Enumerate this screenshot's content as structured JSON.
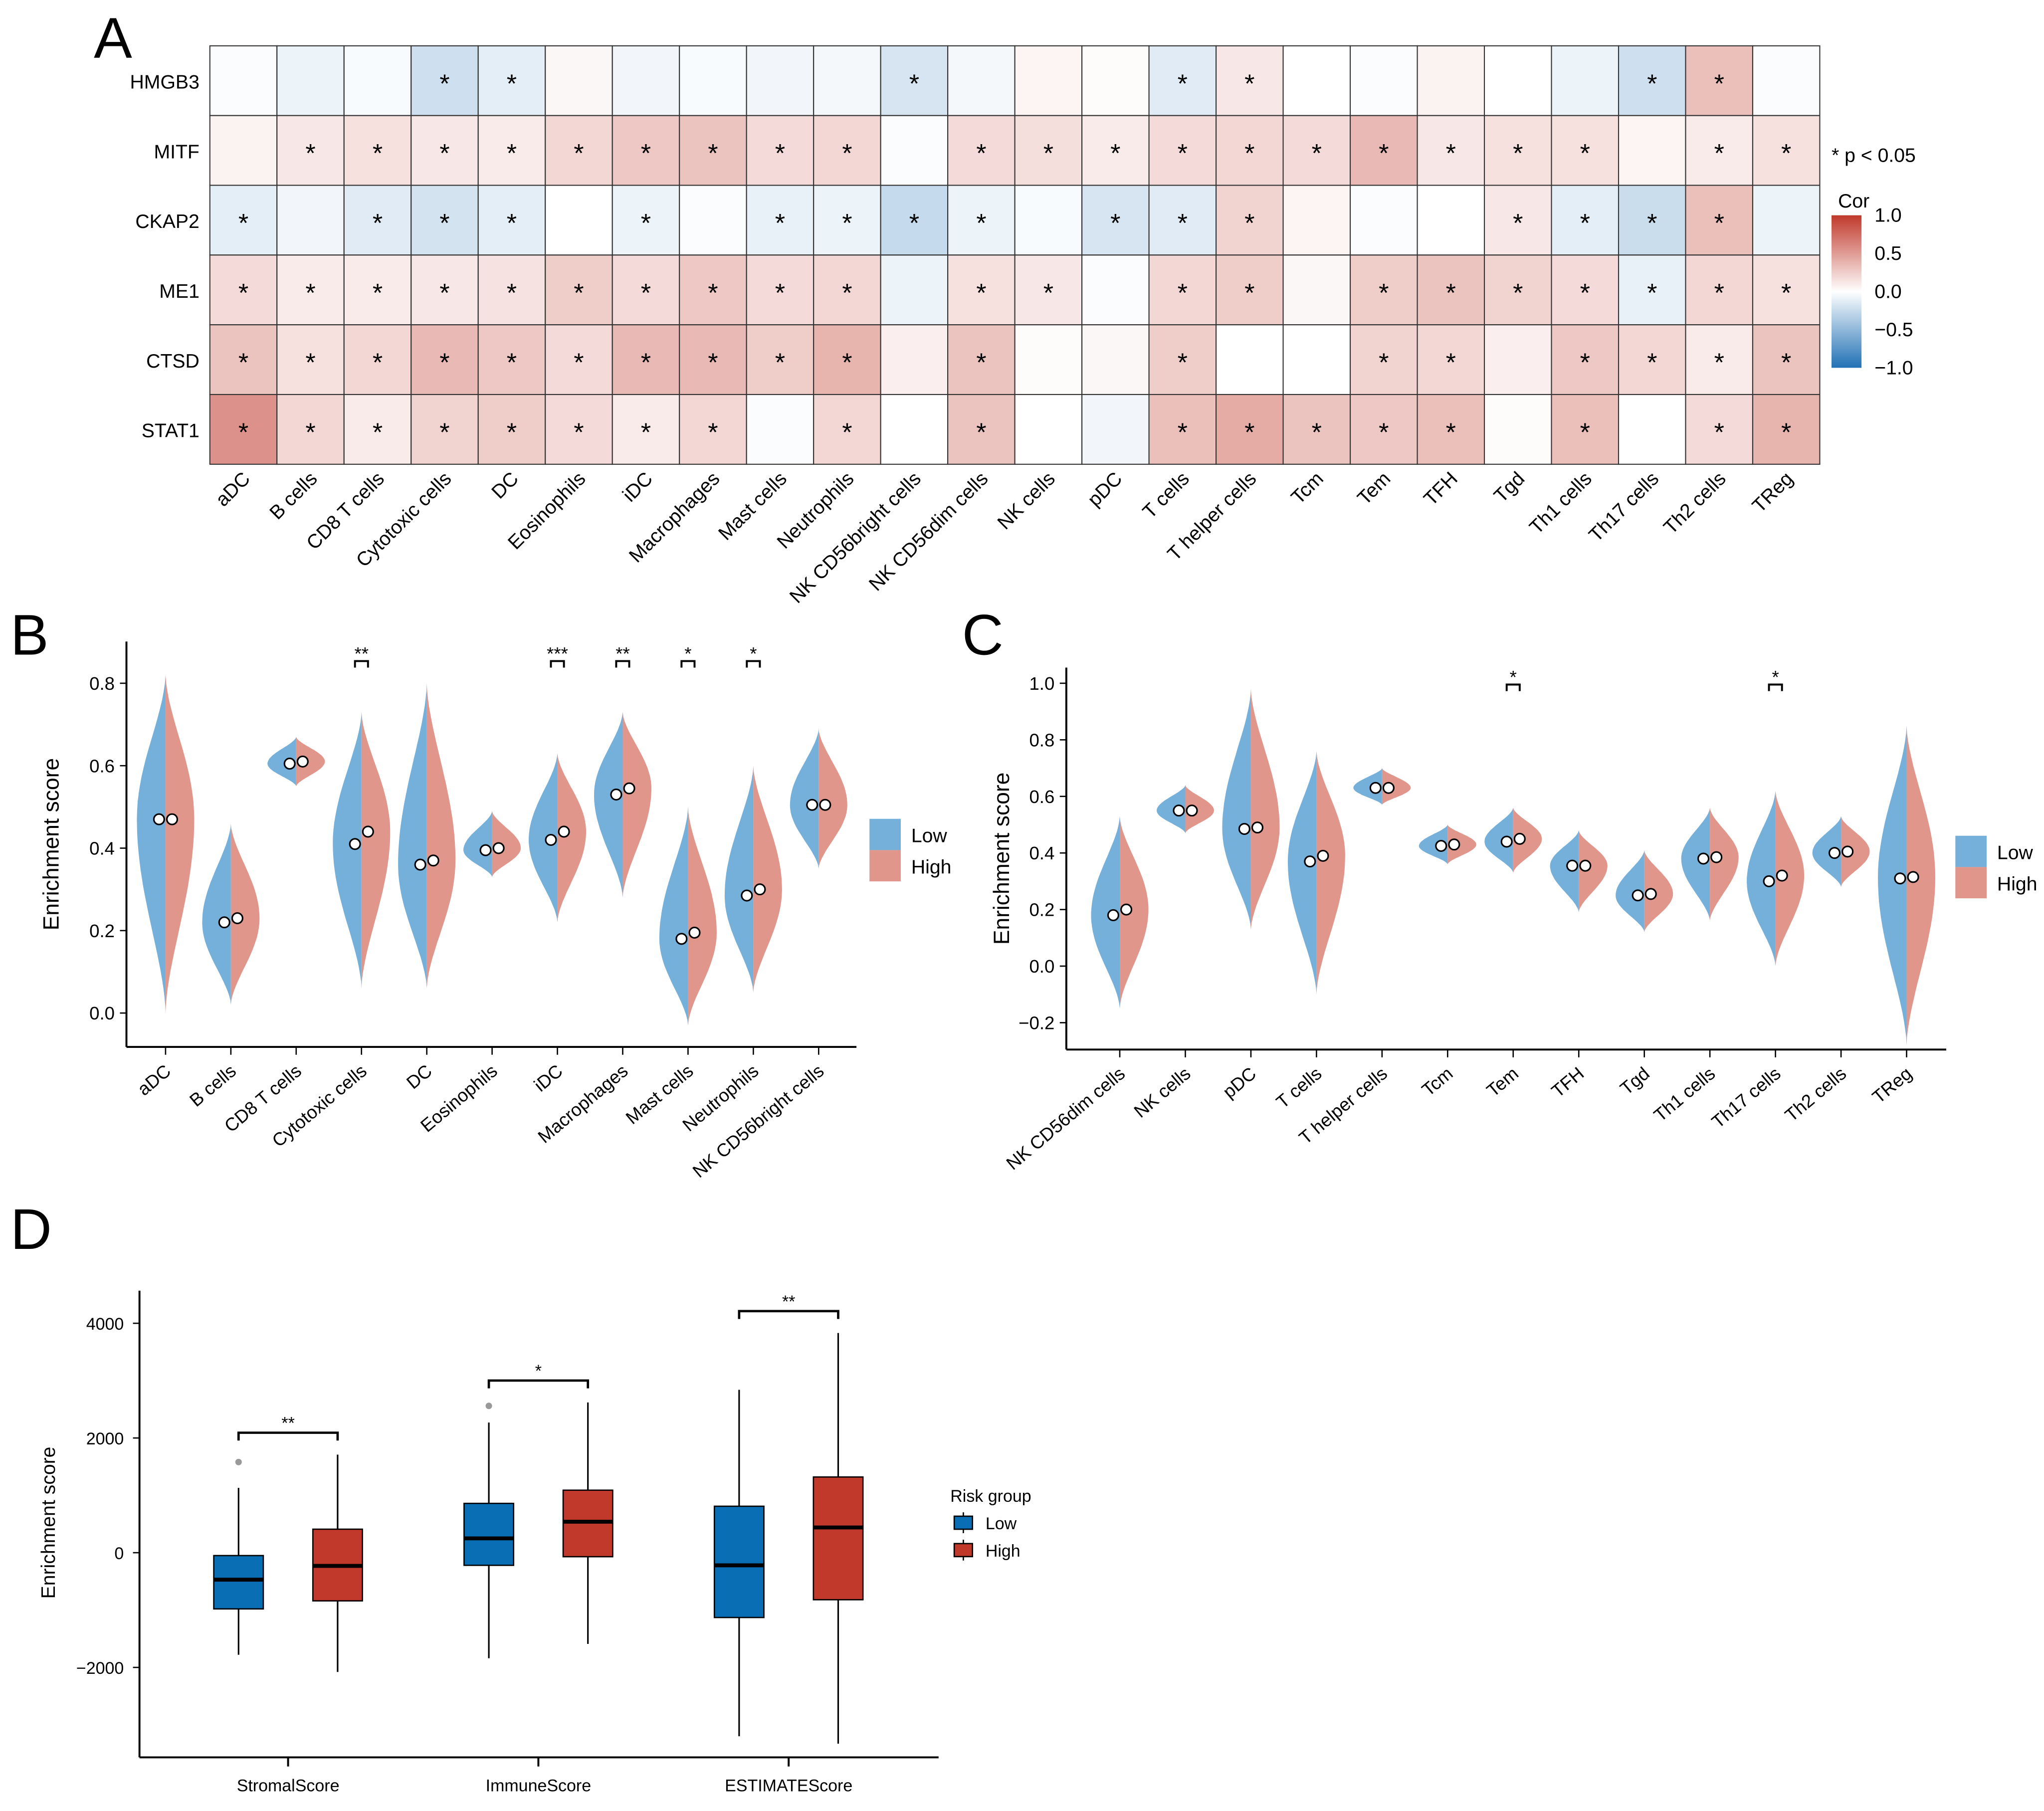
{
  "panels": {
    "a": "A",
    "b": "B",
    "c": "C",
    "d": "D"
  },
  "chart_data": [
    {
      "type": "heatmap",
      "panel": "A",
      "rows": [
        "HMGB3",
        "MITF",
        "CKAP2",
        "ME1",
        "CTSD",
        "STAT1"
      ],
      "columns": [
        "aDC",
        "B cells",
        "CD8 T cells",
        "Cytotoxic cells",
        "DC",
        "Eosinophils",
        "iDC",
        "Macrophages",
        "Mast cells",
        "Neutrophils",
        "NK CD56bright cells",
        "NK CD56dim cells",
        "NK cells",
        "pDC",
        "T cells",
        "T helper cells",
        "Tcm",
        "Tem",
        "TFH",
        "Tgd",
        "Th1 cells",
        "Th17 cells",
        "Th2 cells",
        "TReg"
      ],
      "values": [
        [
          -0.02,
          -0.08,
          -0.03,
          -0.22,
          -0.12,
          0.04,
          -0.06,
          -0.03,
          -0.06,
          -0.05,
          -0.18,
          -0.05,
          0.05,
          0.02,
          -0.14,
          0.12,
          0.0,
          -0.02,
          0.06,
          0.0,
          -0.08,
          -0.22,
          0.32,
          -0.02
        ],
        [
          0.06,
          0.12,
          0.15,
          0.12,
          0.1,
          0.2,
          0.28,
          0.3,
          0.18,
          0.2,
          -0.02,
          0.18,
          0.16,
          0.1,
          0.18,
          0.2,
          0.18,
          0.35,
          0.12,
          0.15,
          0.15,
          0.05,
          0.1,
          0.15
        ],
        [
          -0.12,
          -0.06,
          -0.14,
          -0.2,
          -0.12,
          0.0,
          -0.08,
          -0.02,
          -0.1,
          -0.08,
          -0.26,
          -0.08,
          -0.03,
          -0.18,
          -0.14,
          0.22,
          0.05,
          -0.02,
          0.0,
          0.12,
          -0.12,
          -0.24,
          0.32,
          -0.08
        ],
        [
          0.18,
          0.1,
          0.1,
          0.12,
          0.14,
          0.25,
          0.18,
          0.28,
          0.18,
          0.2,
          -0.08,
          0.15,
          0.12,
          -0.02,
          0.2,
          0.25,
          0.04,
          0.25,
          0.3,
          0.22,
          0.18,
          -0.1,
          0.2,
          0.15
        ],
        [
          0.3,
          0.15,
          0.2,
          0.35,
          0.28,
          0.18,
          0.35,
          0.35,
          0.25,
          0.38,
          0.08,
          0.3,
          0.02,
          0.04,
          0.25,
          0.0,
          0.0,
          0.22,
          0.2,
          0.08,
          0.28,
          0.2,
          0.1,
          0.3
        ],
        [
          0.55,
          0.2,
          0.1,
          0.22,
          0.25,
          0.18,
          0.1,
          0.2,
          -0.02,
          0.2,
          0.0,
          0.3,
          0.0,
          -0.06,
          0.32,
          0.42,
          0.3,
          0.28,
          0.32,
          0.02,
          0.32,
          0.0,
          0.18,
          0.38
        ]
      ],
      "significant": [
        [
          0,
          0,
          0,
          1,
          1,
          0,
          0,
          0,
          0,
          0,
          1,
          0,
          0,
          0,
          1,
          1,
          0,
          0,
          0,
          0,
          0,
          1,
          1,
          0
        ],
        [
          0,
          1,
          1,
          1,
          1,
          1,
          1,
          1,
          1,
          1,
          0,
          1,
          1,
          1,
          1,
          1,
          1,
          1,
          1,
          1,
          1,
          0,
          1,
          1
        ],
        [
          1,
          0,
          1,
          1,
          1,
          0,
          1,
          0,
          1,
          1,
          1,
          1,
          0,
          1,
          1,
          1,
          0,
          0,
          0,
          1,
          1,
          1,
          1,
          0
        ],
        [
          1,
          1,
          1,
          1,
          1,
          1,
          1,
          1,
          1,
          1,
          0,
          1,
          1,
          0,
          1,
          1,
          0,
          1,
          1,
          1,
          1,
          1,
          1,
          1
        ],
        [
          1,
          1,
          1,
          1,
          1,
          1,
          1,
          1,
          1,
          1,
          0,
          1,
          0,
          0,
          1,
          0,
          0,
          1,
          1,
          0,
          1,
          1,
          1,
          1
        ],
        [
          1,
          1,
          1,
          1,
          1,
          1,
          1,
          1,
          0,
          1,
          0,
          1,
          0,
          0,
          1,
          1,
          1,
          1,
          1,
          0,
          1,
          0,
          1,
          1
        ]
      ],
      "star": "*",
      "sig_note": "* p < 0.05",
      "legend_title": "Cor",
      "legend_ticks": [
        "1.0",
        "0.5",
        "0.0",
        "−0.5",
        "−1.0"
      ],
      "range": [
        -1,
        1
      ],
      "colors": {
        "neg": "#2171b5",
        "mid": "#ffffff",
        "pos": "#c0392b"
      }
    },
    {
      "type": "violin",
      "panel": "B",
      "ylabel": "Enrichment score",
      "yticks": [
        "0.0",
        "0.2",
        "0.4",
        "0.6",
        "0.8"
      ],
      "categories": [
        "aDC",
        "B cells",
        "CD8 T cells",
        "Cytotoxic cells",
        "DC",
        "Eosinophils",
        "iDC",
        "Macrophages",
        "Mast cells",
        "Neutrophils",
        "NK CD56bright cells"
      ],
      "low_median": [
        0.47,
        0.22,
        0.605,
        0.41,
        0.36,
        0.395,
        0.42,
        0.53,
        0.18,
        0.285,
        0.505
      ],
      "high_median": [
        0.47,
        0.23,
        0.61,
        0.44,
        0.37,
        0.4,
        0.44,
        0.545,
        0.195,
        0.3,
        0.505
      ],
      "min": [
        0.0,
        0.02,
        0.55,
        0.06,
        0.06,
        0.33,
        0.22,
        0.28,
        -0.03,
        0.05,
        0.35
      ],
      "max": [
        0.82,
        0.46,
        0.67,
        0.73,
        0.8,
        0.49,
        0.63,
        0.73,
        0.5,
        0.6,
        0.69
      ],
      "significance": [
        "",
        "",
        "",
        "**",
        "",
        "",
        "***",
        "**",
        "*",
        "*",
        ""
      ],
      "legend": [
        "Low",
        "High"
      ],
      "colors": {
        "low": "#74b0da",
        "high": "#e0968b"
      }
    },
    {
      "type": "violin",
      "panel": "C",
      "ylabel": "Enrichment score",
      "yticks": [
        "−0.2",
        "0.0",
        "0.2",
        "0.4",
        "0.6",
        "0.8",
        "1.0"
      ],
      "categories": [
        "NK CD56dim cells",
        "NK cells",
        "pDC",
        "T cells",
        "T helper cells",
        "Tcm",
        "Tem",
        "TFH",
        "Tgd",
        "Th1 cells",
        "Th17 cells",
        "Th2 cells",
        "TReg"
      ],
      "low_median": [
        0.18,
        0.55,
        0.485,
        0.37,
        0.63,
        0.425,
        0.44,
        0.355,
        0.25,
        0.38,
        0.3,
        0.4,
        0.31
      ],
      "high_median": [
        0.2,
        0.55,
        0.49,
        0.39,
        0.63,
        0.43,
        0.45,
        0.355,
        0.255,
        0.385,
        0.32,
        0.405,
        0.315
      ],
      "min": [
        -0.15,
        0.47,
        0.13,
        -0.1,
        0.57,
        0.36,
        0.33,
        0.19,
        0.12,
        0.16,
        0.0,
        0.28,
        -0.28
      ],
      "max": [
        0.53,
        0.64,
        0.98,
        0.76,
        0.7,
        0.5,
        0.56,
        0.48,
        0.41,
        0.56,
        0.62,
        0.53,
        0.85
      ],
      "significance": [
        "",
        "",
        "",
        "",
        "",
        "",
        "*",
        "",
        "",
        "",
        "*",
        "",
        ""
      ],
      "legend": [
        "Low",
        "High"
      ],
      "colors": {
        "low": "#74b0da",
        "high": "#e0968b"
      }
    },
    {
      "type": "box",
      "panel": "D",
      "ylabel": "Enrichment score",
      "yticks": [
        "−2000",
        "0",
        "2000",
        "4000"
      ],
      "categories": [
        "StromalScore",
        "ImmuneScore",
        "ESTIMATEScore"
      ],
      "legend_title": "Risk group",
      "series": [
        {
          "name": "Low",
          "color": "#0a6eb4",
          "min": [
            -1780,
            -1840,
            -3200
          ],
          "q1": [
            -980,
            -220,
            -1130
          ],
          "median": [
            -470,
            250,
            -220
          ],
          "q3": [
            -50,
            860,
            810
          ],
          "max": [
            1130,
            2270,
            2840
          ],
          "outliers": [
            [
              1580
            ],
            [
              2560
            ],
            []
          ]
        },
        {
          "name": "High",
          "color": "#c0392b",
          "min": [
            -2080,
            -1590,
            -3330
          ],
          "q1": [
            -840,
            -70,
            -820
          ],
          "median": [
            -230,
            540,
            440
          ],
          "q3": [
            410,
            1090,
            1320
          ],
          "max": [
            1710,
            2620,
            3830
          ],
          "outliers": [
            [],
            [],
            []
          ]
        }
      ],
      "significance": [
        "**",
        "*",
        "**"
      ]
    }
  ]
}
